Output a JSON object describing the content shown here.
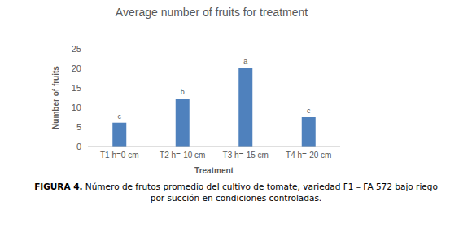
{
  "chart_data": {
    "type": "bar",
    "title": "Average number of fruits for treatment",
    "x_label": "Treatment",
    "y_label": "Number of fruits",
    "categories": [
      "T1 h=0 cm",
      "T2 h=-10 cm",
      "T3 h=-15 cm",
      "T4 h=-20 cm"
    ],
    "values": [
      6.1,
      12.2,
      20.2,
      7.5
    ],
    "annotations": [
      "c",
      "b",
      "a",
      "c"
    ],
    "color": "#4f81bd",
    "ylim": [
      0,
      25
    ],
    "yticks": [
      0,
      5,
      10,
      15,
      20,
      25
    ],
    "grid": false,
    "caption_label": "FIGURA 4.",
    "caption_text": "Número de frutos promedio del cultivo de tomate, variedad F1 – FA 572 bajo riego por succión en condiciones controladas."
  }
}
